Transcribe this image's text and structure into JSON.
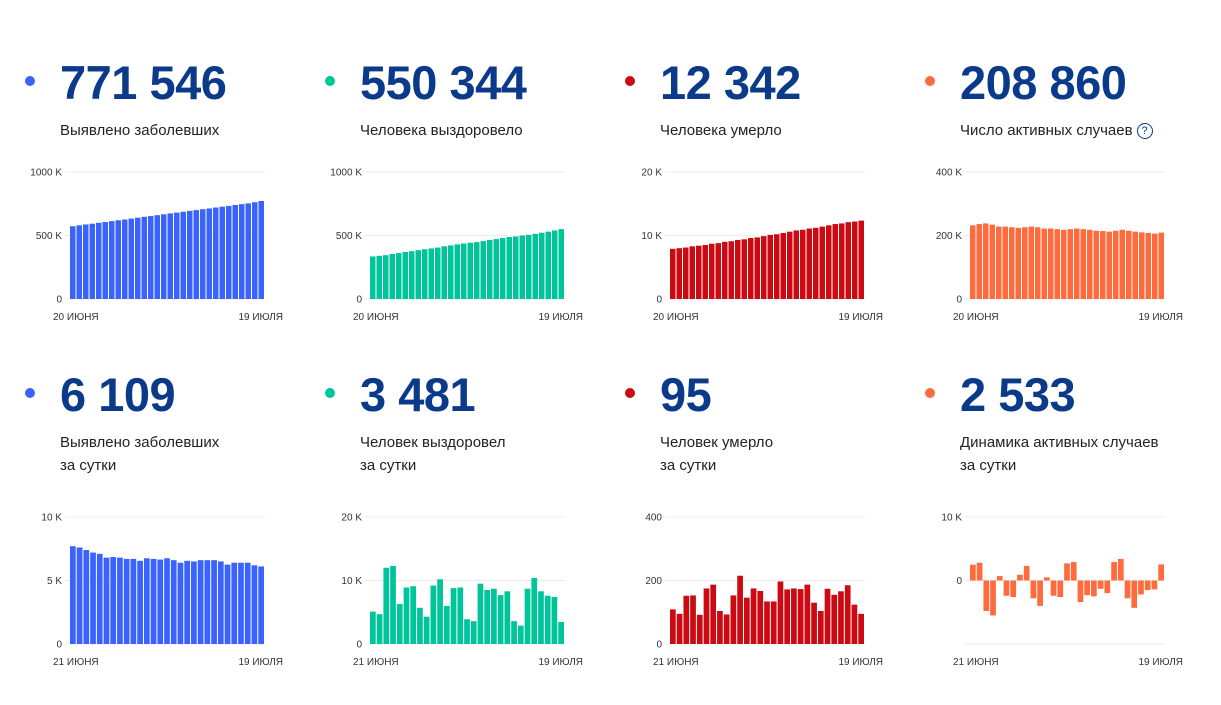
{
  "help_icon": "?",
  "panels": [
    {
      "id": "cases",
      "color": "#3a62ff",
      "value": "771 546",
      "label": [
        "Выявлено заболевших"
      ]
    },
    {
      "id": "recovered",
      "color": "#00c49a",
      "value": "550 344",
      "label": [
        "Человека выздоровело"
      ]
    },
    {
      "id": "deaths",
      "color": "#cc0a14",
      "value": "12 342",
      "label": [
        "Человека умерло"
      ]
    },
    {
      "id": "active",
      "color": "#ff6b3d",
      "value": "208 860",
      "label": [
        "Число активных случаев"
      ],
      "help": true
    },
    {
      "id": "cases_daily",
      "color": "#3a62ff",
      "value": "6 109",
      "label": [
        "Выявлено заболевших",
        "за сутки"
      ]
    },
    {
      "id": "recovered_daily",
      "color": "#00c49a",
      "value": "3 481",
      "label": [
        "Человек выздоровел",
        "за сутки"
      ]
    },
    {
      "id": "deaths_daily",
      "color": "#cc0a14",
      "value": "95",
      "label": [
        "Человек умерло",
        "за сутки"
      ]
    },
    {
      "id": "active_daily",
      "color": "#ff6b3d",
      "value": "2 533",
      "label": [
        "Динамика активных случаев",
        "за сутки"
      ]
    }
  ],
  "chart_data": [
    {
      "type": "bar",
      "title": "Выявлено заболевших",
      "unit": "K",
      "ylim": [
        0,
        1000
      ],
      "yticks": [
        {
          "v": 1000,
          "t": "1000 K"
        },
        {
          "v": 500,
          "t": "500 K"
        },
        {
          "v": 0,
          "t": "0"
        }
      ],
      "xlabels": [
        "20 июня",
        "19 июля"
      ],
      "values": [
        573,
        580,
        587,
        593,
        600,
        606,
        613,
        620,
        626,
        633,
        640,
        647,
        653,
        660,
        667,
        674,
        680,
        687,
        694,
        700,
        707,
        713,
        720,
        727,
        733,
        740,
        747,
        753,
        762,
        771.5
      ]
    },
    {
      "type": "bar",
      "title": "Человека выздоровело",
      "unit": "K",
      "ylim": [
        0,
        1000
      ],
      "yticks": [
        {
          "v": 1000,
          "t": "1000 K"
        },
        {
          "v": 500,
          "t": "500 K"
        },
        {
          "v": 0,
          "t": "0"
        }
      ],
      "xlabels": [
        "20 июня",
        "19 июля"
      ],
      "values": [
        335,
        340,
        345,
        355,
        362,
        370,
        377,
        385,
        392,
        398,
        405,
        415,
        422,
        430,
        437,
        443,
        448,
        456,
        465,
        472,
        480,
        488,
        493,
        500,
        505,
        513,
        522,
        530,
        540,
        550
      ]
    },
    {
      "type": "bar",
      "title": "Человека умерло",
      "unit": "K",
      "ylim": [
        0,
        20
      ],
      "yticks": [
        {
          "v": 20,
          "t": "20 K"
        },
        {
          "v": 10,
          "t": "10 K"
        },
        {
          "v": 0,
          "t": "0"
        }
      ],
      "xlabels": [
        "20 июня",
        "19 июля"
      ],
      "values": [
        7.9,
        8.0,
        8.1,
        8.3,
        8.4,
        8.5,
        8.7,
        8.8,
        9.0,
        9.1,
        9.3,
        9.4,
        9.6,
        9.7,
        9.9,
        10.1,
        10.2,
        10.4,
        10.6,
        10.8,
        10.9,
        11.1,
        11.2,
        11.4,
        11.6,
        11.8,
        11.9,
        12.1,
        12.2,
        12.34
      ]
    },
    {
      "type": "bar",
      "title": "Число активных случаев",
      "unit": "K",
      "ylim": [
        0,
        400
      ],
      "yticks": [
        {
          "v": 400,
          "t": "400 K"
        },
        {
          "v": 200,
          "t": "200 K"
        },
        {
          "v": 0,
          "t": "0"
        }
      ],
      "xlabels": [
        "20 июня",
        "19 июля"
      ],
      "values": [
        232,
        236,
        238,
        234,
        228,
        228,
        226,
        224,
        226,
        228,
        226,
        222,
        222,
        220,
        218,
        220,
        222,
        220,
        218,
        215,
        214,
        212,
        215,
        218,
        215,
        212,
        210,
        208,
        206,
        208.86
      ]
    },
    {
      "type": "bar",
      "title": "Выявлено заболевших за сутки",
      "unit": "K",
      "ylim": [
        0,
        10
      ],
      "yticks": [
        {
          "v": 10,
          "t": "10 K"
        },
        {
          "v": 5,
          "t": "5 K"
        },
        {
          "v": 0,
          "t": "0"
        }
      ],
      "xlabels": [
        "21 июня",
        "19 июля"
      ],
      "values": [
        7.7,
        7.6,
        7.4,
        7.2,
        7.1,
        6.8,
        6.85,
        6.8,
        6.7,
        6.7,
        6.55,
        6.75,
        6.7,
        6.65,
        6.75,
        6.6,
        6.4,
        6.55,
        6.5,
        6.6,
        6.6,
        6.6,
        6.5,
        6.25,
        6.4,
        6.4,
        6.4,
        6.2,
        6.109
      ]
    },
    {
      "type": "bar",
      "title": "Человек выздоровел за сутки",
      "unit": "K",
      "ylim": [
        0,
        20
      ],
      "yticks": [
        {
          "v": 20,
          "t": "20 K"
        },
        {
          "v": 10,
          "t": "10 K"
        },
        {
          "v": 0,
          "t": "0"
        }
      ],
      "xlabels": [
        "21 июня",
        "19 июля"
      ],
      "values": [
        5.1,
        4.7,
        12.0,
        12.3,
        6.3,
        8.9,
        9.1,
        5.7,
        4.3,
        9.2,
        10.2,
        6.0,
        8.8,
        8.9,
        3.9,
        3.6,
        9.5,
        8.5,
        8.7,
        7.7,
        8.3,
        3.6,
        2.9,
        8.7,
        10.4,
        8.3,
        7.6,
        7.4,
        3.481
      ]
    },
    {
      "type": "bar",
      "title": "Человек умерло за сутки",
      "unit": "",
      "ylim": [
        0,
        400
      ],
      "yticks": [
        {
          "v": 400,
          "t": "400"
        },
        {
          "v": 200,
          "t": "200"
        },
        {
          "v": 0,
          "t": "0"
        }
      ],
      "xlabels": [
        "21 июня",
        "19 июля"
      ],
      "values": [
        109,
        95,
        152,
        153,
        92,
        175,
        187,
        104,
        93,
        153,
        215,
        146,
        175,
        167,
        134,
        134,
        197,
        172,
        175,
        173,
        187,
        130,
        104,
        174,
        155,
        166,
        185,
        124,
        95
      ]
    },
    {
      "type": "bar",
      "title": "Динамика активных случаев за сутки",
      "unit": "K",
      "ylim": [
        -10,
        10
      ],
      "yticks": [
        {
          "v": 10,
          "t": "10 K"
        },
        {
          "v": 0,
          "t": "0"
        },
        {
          "v": -10,
          "t": ""
        }
      ],
      "xlabels": [
        "21 июня",
        "19 июля"
      ],
      "values": [
        2.5,
        2.8,
        -4.8,
        -5.5,
        0.7,
        -2.4,
        -2.6,
        0.9,
        2.3,
        -2.8,
        -4.0,
        0.5,
        -2.4,
        -2.6,
        2.7,
        2.9,
        -3.4,
        -2.3,
        -2.5,
        -1.3,
        -2.0,
        2.9,
        3.4,
        -2.8,
        -4.3,
        -2.2,
        -1.5,
        -1.4,
        2.533
      ]
    }
  ]
}
